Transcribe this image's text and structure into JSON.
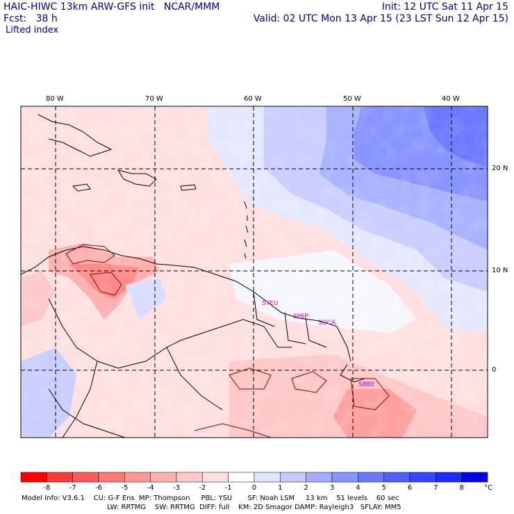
{
  "header": {
    "line1_left": "HAIC-HIWC 13km ARW-GFS init   NCAR/MMM",
    "line2_left": "Fcst:   38 h",
    "line3_left": "Lifted index",
    "line1_right": "Init: 12 UTC Sat 11 Apr 15",
    "line2_right": "Valid: 02 UTC Mon 13 Apr 15 (23 LST Sun 12 Apr 15)"
  },
  "axes": {
    "longitudes": [
      "80 W",
      "70 W",
      "60 W",
      "50 W",
      "40 W"
    ],
    "latitudes": [
      "20 N",
      "10 N",
      "0"
    ]
  },
  "cities": [
    "SYEU",
    "SMJP",
    "SOCA",
    "SBBE"
  ],
  "colorbar": {
    "ticks": [
      "-8",
      "-7",
      "-6",
      "-5",
      "-4",
      "-3",
      "-2",
      "-1",
      "0",
      "1",
      "2",
      "3",
      "4",
      "5",
      "6",
      "7",
      "8"
    ],
    "unit": "°C",
    "colors": [
      "#ff0000",
      "#ff3a3a",
      "#ff5a5a",
      "#ff7878",
      "#ff9696",
      "#ffb0b0",
      "#ffc8c8",
      "#ffe0e0",
      "#ffffff",
      "#e0e4ff",
      "#c4caff",
      "#a4aeff",
      "#8894ff",
      "#6c78ff",
      "#5060ff",
      "#3444ff",
      "#1c2cff",
      "#0000ee"
    ]
  },
  "footer": {
    "line1": "Model Info: V3.6.1    CU: G-F Ens  MP: Thompson     PBL: YSU       SF: Noah LSM     13 km    51 levels    60 sec",
    "line2": "LW: RRTMG    SW: RRTMG  DIFF: full    KM: 2D Smagor DAMP: Rayleigh3   SFLAY: MM5"
  },
  "colors": {
    "header_text": "#00008b",
    "city_labels": "#cc00cc",
    "contour": "#8b0000"
  }
}
